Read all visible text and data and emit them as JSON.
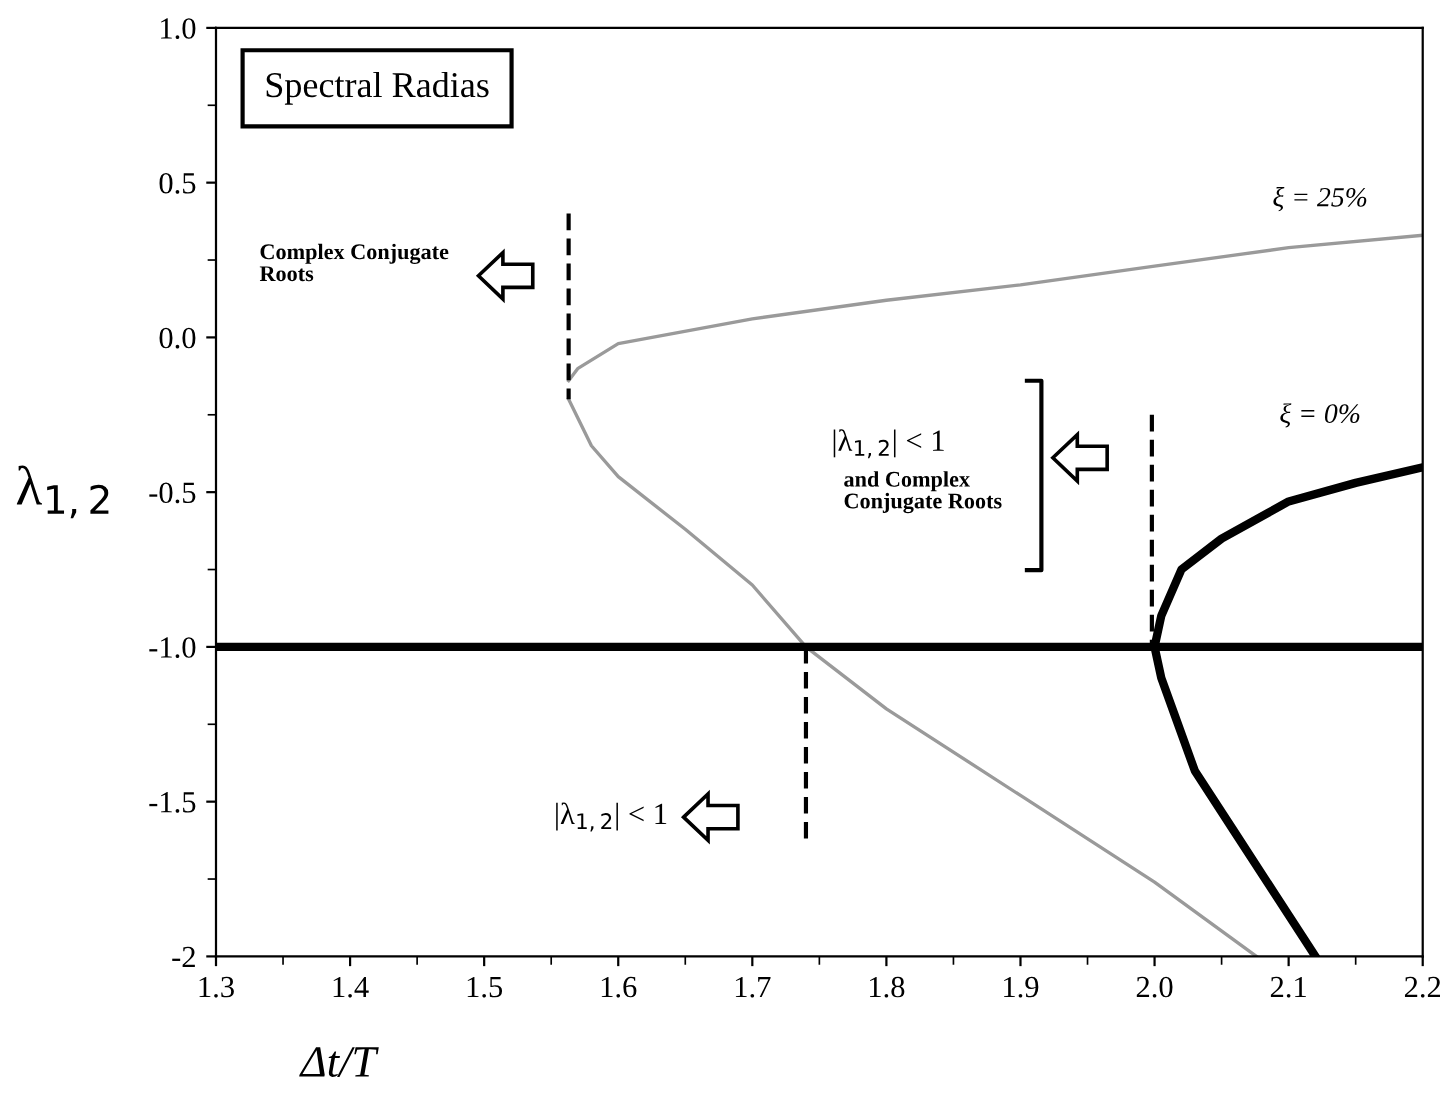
{
  "chart_data": {
    "type": "line",
    "title": "Spectral Radias",
    "xlabel": "Δt/T",
    "ylabel": "λ$_{1,2}$",
    "xlim": [
      1.3,
      2.2
    ],
    "xticks": [
      1.3,
      1.4,
      1.5,
      1.6,
      1.7,
      1.8,
      1.9,
      {
        "value": 2.0,
        "label": "2.0"
      },
      2.1,
      2.2
    ],
    "ylim": [
      -2,
      1.0
    ],
    "yticks": [
      {
        "value": 1.0,
        "label": "1.0"
      },
      0.5,
      {
        "value": 0.0,
        "label": "0.0"
      },
      -0.5,
      {
        "value": -1.0,
        "label": "-1.0"
      },
      -1.5,
      -2
    ],
    "grid": false,
    "legend": false,
    "marker": "none",
    "series": [
      {
        "color": "#9a9a9a",
        "x": [
          1.563,
          1.57,
          1.6,
          1.7,
          1.8,
          1.9,
          2.0,
          2.1,
          2.2
        ],
        "values": [
          -0.14,
          -0.1,
          -0.02,
          0.06,
          0.12,
          0.17,
          0.23,
          0.29,
          0.33
        ]
      },
      {
        "color": "#9a9a9a",
        "x": [
          1.563,
          1.58,
          1.6,
          1.65,
          1.7,
          1.74,
          1.8,
          1.9,
          2.0,
          2.076
        ],
        "values": [
          -0.2,
          -0.35,
          -0.45,
          -0.62,
          -0.8,
          -1.0,
          -1.2,
          -1.48,
          -1.76,
          -2.0
        ]
      },
      {
        "color": "#000000",
        "x": [
          1.3,
          2.2
        ],
        "values": [
          -1.0,
          -1.0
        ]
      },
      {
        "color": "#000000",
        "x": [
          2.2,
          2.15,
          2.1,
          2.05,
          2.02,
          2.005,
          2.0,
          2.005,
          2.015,
          2.03,
          2.06,
          2.09,
          2.12
        ],
        "values": [
          -0.42,
          -0.47,
          -0.53,
          -0.65,
          -0.75,
          -0.9,
          -1.0,
          -1.1,
          -1.22,
          -1.4,
          -1.6,
          -1.8,
          -2.0
        ]
      },
      {
        "color": "#000000",
        "line_style": "dashed",
        "x": [
          1.563,
          1.563
        ],
        "values": [
          0.4,
          -0.2
        ]
      },
      {
        "color": "#000000",
        "line_style": "dashed",
        "x": [
          1.74,
          1.74
        ],
        "values": [
          -1.0,
          -1.62
        ]
      },
      {
        "color": "#000000",
        "line_style": "dashed",
        "x": [
          1.998,
          1.998
        ],
        "values": [
          -0.25,
          -1.0
        ]
      }
    ],
    "annotations": [
      "ξ = 25%",
      "ξ = 0%",
      "Complex Conjugate\nRoots",
      "|λ$_{1,2}$| < 1",
      "|λ$_{1,2}$| < 1",
      "and Complex\nConjugate Roots"
    ]
  }
}
